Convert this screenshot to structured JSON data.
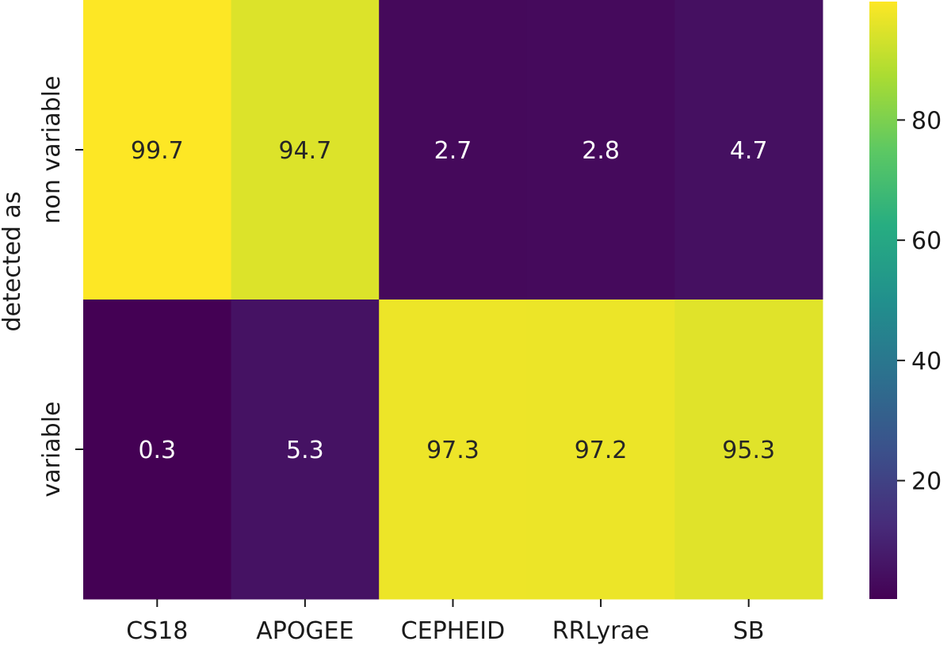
{
  "chart_data": {
    "type": "heatmap",
    "title": "",
    "xlabel": "",
    "ylabel_lines": [
      "detected as"
    ],
    "columns": [
      "CS18",
      "APOGEE",
      "CEPHEID",
      "RRLyrae",
      "SB"
    ],
    "rows": [
      "non variable",
      "variable"
    ],
    "values": [
      [
        99.7,
        94.7,
        2.7,
        2.8,
        4.7
      ],
      [
        0.3,
        5.3,
        97.3,
        97.2,
        95.3
      ]
    ],
    "colorbar": {
      "colormap": "viridis",
      "range": [
        0.3,
        99.7
      ],
      "ticks": [
        20,
        40,
        60,
        80
      ]
    },
    "grid": false,
    "legend": "colorbar-right"
  }
}
